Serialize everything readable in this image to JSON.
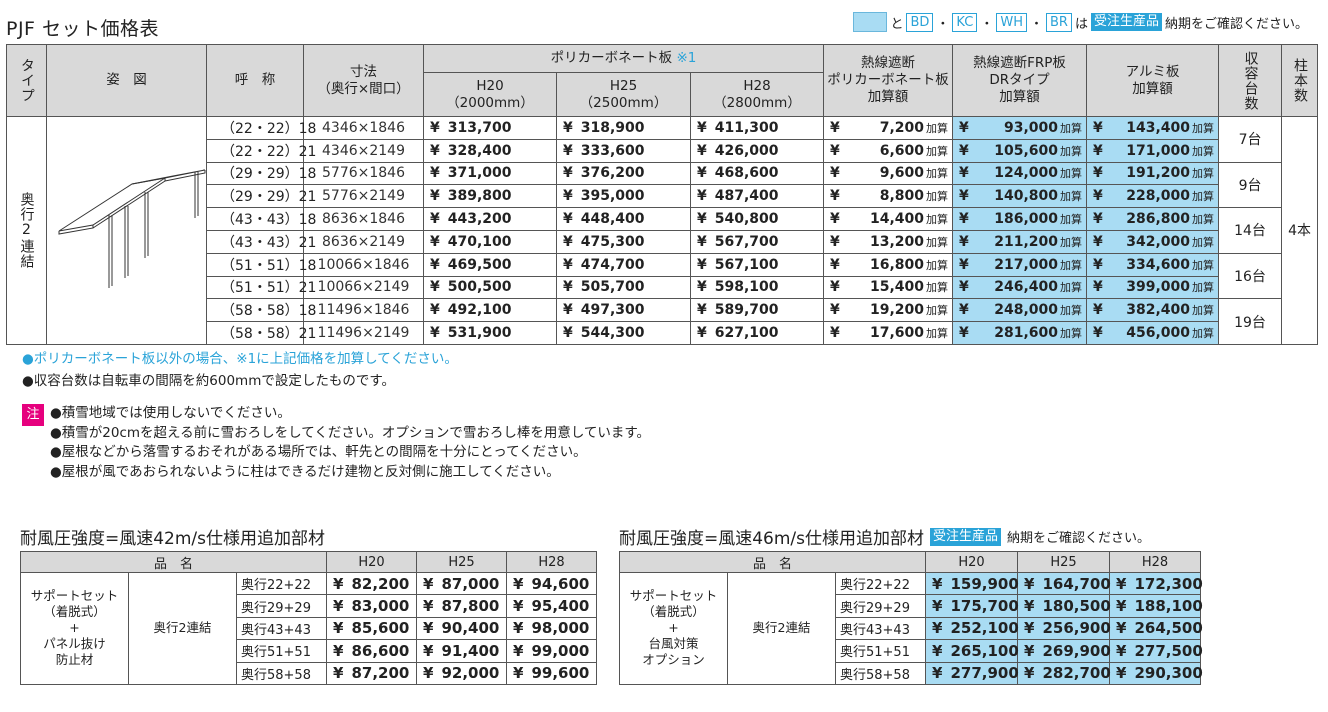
{
  "title": "PJF セット価格表",
  "legend": {
    "to": "と",
    "bd": "BD",
    "dot": "・",
    "kc": "KC",
    "wh": "WH",
    "br": "BR",
    "wa": "は",
    "order": "受注生産品",
    "confirm": "納期をご確認ください。"
  },
  "headers": {
    "type": "タイプ",
    "figure": "姿　図",
    "name": "呼　称",
    "size_line1": "寸法",
    "size_line2": "（奥行×間口）",
    "poly_group": "ポリカーボネート板",
    "poly_mark": "※1",
    "h20": "H20",
    "h20_sub": "（2000mm）",
    "h25": "H25",
    "h25_sub": "（2500mm）",
    "h28": "H28",
    "h28_sub": "（2800mm）",
    "heat_l1": "熱線遮断",
    "heat_l2": "ポリカーボネート板",
    "heat_l3": "加算額",
    "frp_l1": "熱線遮断FRP板",
    "frp_l2": "DRタイプ",
    "frp_l3": "加算額",
    "alu_l1": "アルミ板",
    "alu_l2": "加算額",
    "capacity": "収容台数",
    "posts": "柱本数"
  },
  "type_label": "奥行2連結",
  "posts_value": "4本",
  "yen": "¥",
  "add_suffix": "加算",
  "rows": [
    {
      "name": "（22・22）18",
      "size": "4346×1846",
      "h20": "313,700",
      "h25": "318,900",
      "h28": "411,300",
      "heat": "7,200",
      "frp": "93,000",
      "alu": "143,400"
    },
    {
      "name": "（22・22）21",
      "size": "4346×2149",
      "h20": "328,400",
      "h25": "333,600",
      "h28": "426,000",
      "heat": "6,600",
      "frp": "105,600",
      "alu": "171,000"
    },
    {
      "name": "（29・29）18",
      "size": "5776×1846",
      "h20": "371,000",
      "h25": "376,200",
      "h28": "468,600",
      "heat": "9,600",
      "frp": "124,000",
      "alu": "191,200"
    },
    {
      "name": "（29・29）21",
      "size": "5776×2149",
      "h20": "389,800",
      "h25": "395,000",
      "h28": "487,400",
      "heat": "8,800",
      "frp": "140,800",
      "alu": "228,000"
    },
    {
      "name": "（43・43）18",
      "size": "8636×1846",
      "h20": "443,200",
      "h25": "448,400",
      "h28": "540,800",
      "heat": "14,400",
      "frp": "186,000",
      "alu": "286,800"
    },
    {
      "name": "（43・43）21",
      "size": "8636×2149",
      "h20": "470,100",
      "h25": "475,300",
      "h28": "567,700",
      "heat": "13,200",
      "frp": "211,200",
      "alu": "342,000"
    },
    {
      "name": "（51・51）18",
      "size": "10066×1846",
      "h20": "469,500",
      "h25": "474,700",
      "h28": "567,100",
      "heat": "16,800",
      "frp": "217,000",
      "alu": "334,600"
    },
    {
      "name": "（51・51）21",
      "size": "10066×2149",
      "h20": "500,500",
      "h25": "505,700",
      "h28": "598,100",
      "heat": "15,400",
      "frp": "246,400",
      "alu": "399,000"
    },
    {
      "name": "（58・58）18",
      "size": "11496×1846",
      "h20": "492,100",
      "h25": "497,300",
      "h28": "589,700",
      "heat": "19,200",
      "frp": "248,000",
      "alu": "382,400"
    },
    {
      "name": "（58・58）21",
      "size": "11496×2149",
      "h20": "531,900",
      "h25": "544,300",
      "h28": "627,100",
      "heat": "17,600",
      "frp": "281,600",
      "alu": "456,000"
    }
  ],
  "capacity": [
    "7台",
    "9台",
    "14台",
    "16台",
    "19台"
  ],
  "notes": [
    "●ポリカーボネート板以外の場合、※1に上記価格を加算してください。",
    "●収容台数は自転車の間隔を約600mmで設定したものです。"
  ],
  "caution_mark": "注",
  "cautions": [
    "●積雪地域では使用しないでください。",
    "●積雪が20cmを超える前に雪おろしをしてください。オプションで雪おろし棒を用意しています。",
    "●屋根などから落雪するおそれがある場所では、軒先との間隔を十分にとってください。",
    "●屋根が風であおられないように柱はできるだけ建物と反対側に施工してください。"
  ],
  "wind42": {
    "title": "耐風圧強度=風速42m/s仕様用追加部材",
    "header_item": "品　名",
    "h20": "H20",
    "h25": "H25",
    "h28": "H28",
    "item_l1": "サポートセット",
    "item_l2": "（着脱式）",
    "item_l3": "+",
    "item_l4": "パネル抜け",
    "item_l5": "防止材",
    "type": "奥行2連結",
    "rows": [
      {
        "label": "奥行22+22",
        "h20": "82,200",
        "h25": "87,000",
        "h28": "94,600"
      },
      {
        "label": "奥行29+29",
        "h20": "83,000",
        "h25": "87,800",
        "h28": "95,400"
      },
      {
        "label": "奥行43+43",
        "h20": "85,600",
        "h25": "90,400",
        "h28": "98,000"
      },
      {
        "label": "奥行51+51",
        "h20": "86,600",
        "h25": "91,400",
        "h28": "99,000"
      },
      {
        "label": "奥行58+58",
        "h20": "87,200",
        "h25": "92,000",
        "h28": "99,600"
      }
    ]
  },
  "wind46": {
    "title": "耐風圧強度=風速46m/s仕様用追加部材",
    "order": "受注生産品",
    "confirm": "納期をご確認ください。",
    "header_item": "品　名",
    "h20": "H20",
    "h25": "H25",
    "h28": "H28",
    "item_l1": "サポートセット",
    "item_l2": "（着脱式）",
    "item_l3": "+",
    "item_l4": "台風対策",
    "item_l5": "オプション",
    "type": "奥行2連結",
    "rows": [
      {
        "label": "奥行22+22",
        "h20": "159,900",
        "h25": "164,700",
        "h28": "172,300"
      },
      {
        "label": "奥行29+29",
        "h20": "175,700",
        "h25": "180,500",
        "h28": "188,100"
      },
      {
        "label": "奥行43+43",
        "h20": "252,100",
        "h25": "256,900",
        "h28": "264,500"
      },
      {
        "label": "奥行51+51",
        "h20": "265,100",
        "h25": "269,900",
        "h28": "277,500"
      },
      {
        "label": "奥行58+58",
        "h20": "277,900",
        "h25": "282,700",
        "h28": "290,300"
      }
    ]
  },
  "colors": {
    "accent": "#2aa3d8",
    "highlight": "#a9dcf3",
    "header": "#d9d9d9",
    "caution": "#e6007e"
  }
}
